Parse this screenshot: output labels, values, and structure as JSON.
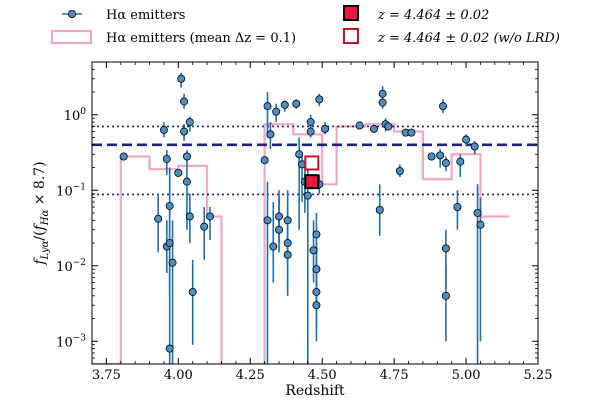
{
  "chart_data": {
    "type": "scatter",
    "xlabel": "Redshift",
    "ylabel": "f_Lyα / (f_Hα × 8.7)",
    "ylabel_parts": {
      "f1": "f",
      "sub1": "Lyα",
      "mid": "/(",
      "f2": "f",
      "sub2": "Hα",
      "tail": " × 8.7)"
    },
    "xlim": [
      3.7,
      5.25
    ],
    "ylim": [
      0.0005,
      5
    ],
    "yscale": "log",
    "x_ticks": [
      3.75,
      4.0,
      4.25,
      4.5,
      4.75,
      5.0,
      5.25
    ],
    "x_tick_labels": [
      "3.75",
      "4.00",
      "4.25",
      "4.50",
      "4.75",
      "5.00",
      "5.25"
    ],
    "y_ticks": [
      0.001,
      0.01,
      0.1,
      1
    ],
    "y_tick_labels": [
      {
        "base": "10",
        "exp": "−3"
      },
      {
        "base": "10",
        "exp": "−2"
      },
      {
        "base": "10",
        "exp": "−1"
      },
      {
        "base": "10",
        "exp": "0"
      }
    ],
    "legend": {
      "placement": "top (outside)",
      "entries": [
        {
          "key": "emitters",
          "label": "Hα emitters"
        },
        {
          "key": "mean",
          "label": "Hα emitters (mean Δz = 0.1)"
        },
        {
          "key": "target",
          "label": "z = 4.464 ± 0.02"
        },
        {
          "key": "target_nolrd",
          "label": "z = 4.464 ± 0.02 (w/o LRD)"
        }
      ]
    },
    "colors": {
      "points": "#4a90c4",
      "errorbars": "#1f6fb0",
      "mean_line": "#f4a7c0",
      "median_line": "#1a237e",
      "target_fill": "#e8193c",
      "target_edge": "#c8102e"
    },
    "reference_lines": {
      "median": 0.4,
      "p16": 0.088,
      "p84": 0.7
    },
    "series": [
      {
        "name": "Hα emitters",
        "points": [
          {
            "x": 3.81,
            "y": 0.28
          },
          {
            "x": 3.93,
            "y": 0.042,
            "lo": 0.015,
            "hi": 0.09
          },
          {
            "x": 3.95,
            "y": 0.63,
            "lo": 0.5,
            "hi": 0.8
          },
          {
            "x": 3.96,
            "y": 0.018,
            "lo": 0.008,
            "hi": 0.04
          },
          {
            "x": 3.96,
            "y": 0.26,
            "lo": 0.16,
            "hi": 0.34
          },
          {
            "x": 3.97,
            "y": 0.062,
            "lo": 0.02,
            "hi": 0.2
          },
          {
            "x": 3.97,
            "y": 0.02,
            "lo": 0.004,
            "hi": 0.06
          },
          {
            "x": 3.97,
            "y": 0.0008,
            "lo": 0.0005,
            "hi": 0.018
          },
          {
            "x": 3.98,
            "y": 0.011,
            "lo": 0.0005,
            "hi": 0.04
          },
          {
            "x": 4.0,
            "y": 0.17
          },
          {
            "x": 4.01,
            "y": 3.0,
            "lo": 2.3,
            "hi": 3.6
          },
          {
            "x": 4.02,
            "y": 1.5,
            "lo": 1.2,
            "hi": 1.9
          },
          {
            "x": 4.02,
            "y": 0.6,
            "lo": 0.45,
            "hi": 0.75
          },
          {
            "x": 4.03,
            "y": 0.28,
            "lo": 0.2,
            "hi": 0.34
          },
          {
            "x": 4.03,
            "y": 0.13,
            "lo": 0.03,
            "hi": 0.2
          },
          {
            "x": 4.04,
            "y": 0.8,
            "lo": 0.6,
            "hi": 0.95
          },
          {
            "x": 4.04,
            "y": 0.045,
            "lo": 0.02,
            "hi": 0.09
          },
          {
            "x": 4.05,
            "y": 0.0045,
            "lo": 0.0009,
            "hi": 0.012
          },
          {
            "x": 4.09,
            "y": 0.033,
            "lo": 0.012,
            "hi": 0.06
          },
          {
            "x": 4.11,
            "y": 0.045,
            "lo": 0.022,
            "hi": 0.06
          },
          {
            "x": 4.3,
            "y": 0.25
          },
          {
            "x": 4.31,
            "y": 1.3,
            "lo": 0.5,
            "hi": 2.0
          },
          {
            "x": 4.31,
            "y": 0.04,
            "lo": 0.0005,
            "hi": 0.13
          },
          {
            "x": 4.32,
            "y": 0.55,
            "lo": 0.35,
            "hi": 0.8
          },
          {
            "x": 4.33,
            "y": 0.018,
            "lo": 0.006,
            "hi": 0.07
          },
          {
            "x": 4.34,
            "y": 1.1,
            "lo": 0.8,
            "hi": 1.4
          },
          {
            "x": 4.35,
            "y": 0.03,
            "lo": 0.015,
            "hi": 0.08
          },
          {
            "x": 4.35,
            "y": 0.045,
            "lo": 0.02,
            "hi": 0.1
          },
          {
            "x": 4.37,
            "y": 1.35,
            "lo": 1.1,
            "hi": 1.55
          },
          {
            "x": 4.38,
            "y": 0.04,
            "lo": 0.015,
            "hi": 0.1
          },
          {
            "x": 4.38,
            "y": 0.02,
            "lo": 0.005,
            "hi": 0.06
          },
          {
            "x": 4.38,
            "y": 0.014,
            "lo": 0.004,
            "hi": 0.05
          },
          {
            "x": 4.41,
            "y": 1.4,
            "lo": 1.2,
            "hi": 1.6
          },
          {
            "x": 4.42,
            "y": 0.3,
            "lo": 0.03,
            "hi": 0.5
          },
          {
            "x": 4.43,
            "y": 0.22,
            "lo": 0.07,
            "hi": 0.3
          },
          {
            "x": 4.44,
            "y": 0.13,
            "lo": 0.05,
            "hi": 0.22
          },
          {
            "x": 4.45,
            "y": 0.085,
            "lo": 0.0005,
            "hi": 0.2
          },
          {
            "x": 4.46,
            "y": 0.8,
            "lo": 0.6,
            "hi": 1.0
          },
          {
            "x": 4.46,
            "y": 0.6,
            "lo": 0.5,
            "hi": 0.75
          },
          {
            "x": 4.47,
            "y": 0.016,
            "lo": 0.006,
            "hi": 0.04
          },
          {
            "x": 4.48,
            "y": 0.026,
            "lo": 0.01,
            "hi": 0.05
          },
          {
            "x": 4.48,
            "y": 0.009,
            "lo": 0.003,
            "hi": 0.02
          },
          {
            "x": 4.48,
            "y": 0.0045,
            "lo": 0.0015,
            "hi": 0.01
          },
          {
            "x": 4.48,
            "y": 0.003,
            "lo": 0.001,
            "hi": 0.007
          },
          {
            "x": 4.49,
            "y": 1.6,
            "lo": 1.3,
            "hi": 1.9
          },
          {
            "x": 4.49,
            "y": 0.12,
            "lo": 0.09,
            "hi": 0.16
          },
          {
            "x": 4.51,
            "y": 0.65,
            "lo": 0.55,
            "hi": 0.8
          },
          {
            "x": 4.63,
            "y": 0.72
          },
          {
            "x": 4.68,
            "y": 0.65
          },
          {
            "x": 4.7,
            "y": 0.055,
            "lo": 0.025,
            "hi": 0.12
          },
          {
            "x": 4.71,
            "y": 1.9,
            "lo": 1.5,
            "hi": 2.4
          },
          {
            "x": 4.71,
            "y": 1.45,
            "lo": 1.2,
            "hi": 1.7
          },
          {
            "x": 4.72,
            "y": 0.75,
            "lo": 0.6,
            "hi": 0.9
          },
          {
            "x": 4.73,
            "y": 0.7
          },
          {
            "x": 4.77,
            "y": 0.18,
            "lo": 0.15,
            "hi": 0.22
          },
          {
            "x": 4.79,
            "y": 0.58
          },
          {
            "x": 4.81,
            "y": 0.58
          },
          {
            "x": 4.88,
            "y": 0.28
          },
          {
            "x": 4.91,
            "y": 0.29,
            "lo": 0.2,
            "hi": 0.35
          },
          {
            "x": 4.92,
            "y": 1.3,
            "lo": 1.05,
            "hi": 1.6
          },
          {
            "x": 4.93,
            "y": 0.017,
            "lo": 0.005,
            "hi": 0.03
          },
          {
            "x": 4.93,
            "y": 0.004,
            "lo": 0.001,
            "hi": 0.01
          },
          {
            "x": 4.93,
            "y": 0.23,
            "lo": 0.18,
            "hi": 0.28
          },
          {
            "x": 4.97,
            "y": 0.06,
            "lo": 0.03,
            "hi": 0.1
          },
          {
            "x": 4.98,
            "y": 0.24,
            "lo": 0.15,
            "hi": 0.3
          },
          {
            "x": 5.0,
            "y": 0.47,
            "lo": 0.38,
            "hi": 0.55
          },
          {
            "x": 5.03,
            "y": 0.38,
            "lo": 0.3,
            "hi": 0.45
          },
          {
            "x": 5.04,
            "y": 0.05,
            "lo": 0.0005,
            "hi": 0.12
          },
          {
            "x": 5.05,
            "y": 0.035,
            "lo": 0.001,
            "hi": 0.08
          }
        ]
      },
      {
        "name": "Hα emitters (mean Δz = 0.1)",
        "type": "step",
        "bins": [
          {
            "x0": 3.7,
            "x1": 3.8,
            "y": 0.0005
          },
          {
            "x0": 3.8,
            "x1": 3.9,
            "y": 0.28
          },
          {
            "x0": 3.9,
            "x1": 4.0,
            "y": 0.19
          },
          {
            "x0": 4.0,
            "x1": 4.1,
            "y": 0.21
          },
          {
            "x0": 4.1,
            "x1": 4.15,
            "y": 0.045
          },
          {
            "x0": 4.15,
            "x1": 4.25,
            "y": 0.0005
          },
          {
            "x0": 4.25,
            "x1": 4.3,
            "y": 0.0005
          },
          {
            "x0": 4.3,
            "x1": 4.4,
            "y": 0.75
          },
          {
            "x0": 4.4,
            "x1": 4.5,
            "y": 0.55
          },
          {
            "x0": 4.5,
            "x1": 4.55,
            "y": 0.12
          },
          {
            "x0": 4.55,
            "x1": 4.65,
            "y": 0.7
          },
          {
            "x0": 4.65,
            "x1": 4.75,
            "y": 0.75
          },
          {
            "x0": 4.75,
            "x1": 4.85,
            "y": 0.6
          },
          {
            "x0": 4.85,
            "x1": 4.95,
            "y": 0.14
          },
          {
            "x0": 4.95,
            "x1": 5.05,
            "y": 0.3
          },
          {
            "x0": 5.05,
            "x1": 5.15,
            "y": 0.045
          }
        ]
      },
      {
        "name": "z = 4.464 ± 0.02",
        "type": "marker",
        "x": 4.464,
        "y": 0.13
      },
      {
        "name": "z = 4.464 ± 0.02 (w/o LRD)",
        "type": "marker",
        "x": 4.464,
        "y": 0.23
      }
    ]
  }
}
